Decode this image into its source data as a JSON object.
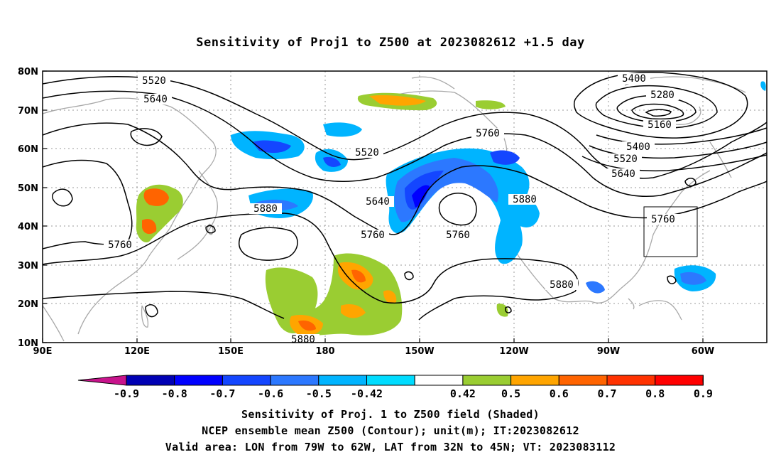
{
  "title": "Sensitivity of Proj1 to Z500 at 2023082612 +1.5 day",
  "map": {
    "lon_ticks": [
      "90E",
      "120E",
      "150E",
      "180",
      "150W",
      "120W",
      "90W",
      "60W"
    ],
    "lat_ticks": [
      "80N",
      "70N",
      "60N",
      "50N",
      "40N",
      "30N",
      "20N",
      "10N"
    ],
    "contour_labels": [
      "5520",
      "5640",
      "5760",
      "5880",
      "5520",
      "5640",
      "5760",
      "5880",
      "5760",
      "5880",
      "5400",
      "5280",
      "5160",
      "5400",
      "5520",
      "5640",
      "5760",
      "5880",
      "5760",
      "5880"
    ],
    "valid_box": {
      "lon_from": -79,
      "lon_to": -62,
      "lat_from": 32,
      "lat_to": 45
    }
  },
  "colorbar": {
    "labels": [
      "-0.9",
      "-0.8",
      "-0.7",
      "-0.6",
      "-0.5",
      "-0.42",
      "0.42",
      "0.5",
      "0.6",
      "0.7",
      "0.8",
      "0.9"
    ],
    "colors": [
      "#0000b4",
      "#0000ff",
      "#1446ff",
      "#2c78ff",
      "#00b4ff",
      "#00dcff",
      "#ffffff",
      "#9acd32",
      "#ffa500",
      "#ff6400",
      "#ff3200",
      "#ff0000"
    ],
    "low_color": "#c8148c",
    "high_color": "#ff96c8"
  },
  "caption": {
    "line1": "Sensitivity of Proj. 1 to Z500 field (Shaded)",
    "line2": "NCEP ensemble mean Z500 (Contour); unit(m); IT:2023082612",
    "line3": "Valid area: LON from 79W to 62W, LAT from 32N to 45N; VT: 2023083112"
  }
}
